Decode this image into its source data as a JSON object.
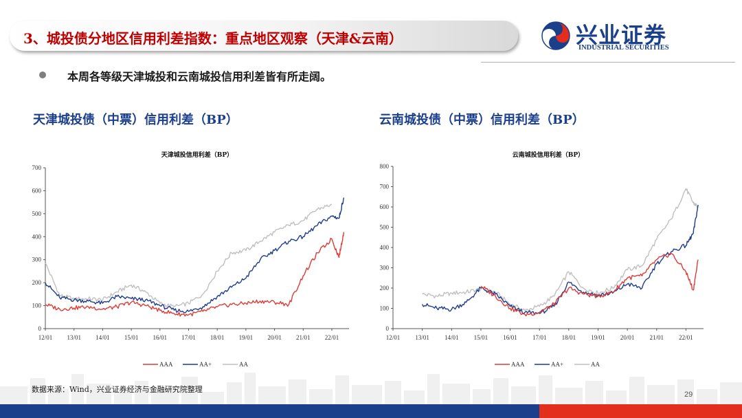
{
  "header": {
    "title": "3、城投债分地区信用利差指数：重点地区观察（天津&云南）",
    "logo_cn": "兴业证券",
    "logo_en": "INDUSTRIAL SECURITIES"
  },
  "bullet": "本周各等级天津城投和云南城投信用利差皆有所走阔。",
  "footer": {
    "source": "数据来源：Wind，兴业证券经济与金融研究院整理",
    "page": "29"
  },
  "colors": {
    "AAA": "#e03a35",
    "AA+": "#1f3c8c",
    "AA": "#c0c0c0",
    "brand_blue": "#1b3f8b",
    "brand_red": "#e32d1d"
  },
  "chart_data": [
    {
      "type": "line",
      "heading": "天津城投债（中票）信用利差（BP）",
      "title": "天津城投信用利差（BP）",
      "x_ticks": [
        "12/01",
        "13/01",
        "14/01",
        "15/01",
        "16/01",
        "17/01",
        "18/01",
        "19/01",
        "20/01",
        "21/01",
        "22/01"
      ],
      "ylim": [
        0,
        700
      ],
      "y_ticks": [
        0,
        100,
        200,
        300,
        400,
        500,
        600,
        700
      ],
      "legend_position": "bottom",
      "x": [
        "2012-01",
        "2012-07",
        "2013-01",
        "2013-07",
        "2014-01",
        "2014-07",
        "2015-01",
        "2015-07",
        "2016-01",
        "2016-07",
        "2017-01",
        "2017-07",
        "2018-01",
        "2018-07",
        "2019-01",
        "2019-07",
        "2020-01",
        "2020-07",
        "2021-01",
        "2021-07",
        "2022-01",
        "2022-04",
        "2022-06"
      ],
      "series": [
        {
          "name": "AAA",
          "values": [
            105,
            85,
            90,
            95,
            85,
            95,
            115,
            100,
            80,
            65,
            60,
            75,
            95,
            105,
            110,
            120,
            115,
            105,
            230,
            330,
            390,
            310,
            420
          ]
        },
        {
          "name": "AA+",
          "values": [
            200,
            135,
            125,
            120,
            110,
            140,
            130,
            125,
            100,
            80,
            75,
            95,
            140,
            180,
            220,
            300,
            340,
            380,
            400,
            450,
            490,
            480,
            570
          ]
        },
        {
          "name": "AA",
          "values": [
            285,
            145,
            130,
            130,
            125,
            160,
            190,
            160,
            110,
            95,
            110,
            150,
            250,
            330,
            340,
            380,
            420,
            450,
            470,
            520,
            540,
            null,
            null
          ]
        }
      ]
    },
    {
      "type": "line",
      "heading": "云南城投债（中票）信用利差（BP）",
      "title": "云南城投信用利差（BP）",
      "x_ticks": [
        "12/01",
        "13/01",
        "14/01",
        "15/01",
        "16/01",
        "17/01",
        "18/01",
        "19/01",
        "20/01",
        "21/01",
        "22/01"
      ],
      "ylim": [
        0,
        800
      ],
      "y_ticks": [
        0,
        100,
        200,
        300,
        400,
        500,
        600,
        700,
        800
      ],
      "legend_position": "bottom",
      "x": [
        "2013-01",
        "2013-07",
        "2014-01",
        "2014-07",
        "2015-01",
        "2015-07",
        "2016-01",
        "2016-07",
        "2017-01",
        "2017-07",
        "2018-01",
        "2018-07",
        "2019-01",
        "2019-07",
        "2020-01",
        "2020-07",
        "2021-01",
        "2021-07",
        "2022-01",
        "2022-04",
        "2022-06"
      ],
      "series": [
        {
          "name": "AAA",
          "values": [
            null,
            null,
            null,
            null,
            210,
            160,
            100,
            70,
            80,
            120,
            200,
            170,
            160,
            180,
            250,
            260,
            340,
            370,
            280,
            190,
            340
          ]
        },
        {
          "name": "AA+",
          "values": [
            120,
            100,
            95,
            130,
            200,
            170,
            110,
            80,
            75,
            110,
            230,
            180,
            165,
            175,
            220,
            200,
            320,
            380,
            410,
            470,
            610
          ]
        },
        {
          "name": "AA",
          "values": [
            170,
            160,
            175,
            180,
            195,
            180,
            120,
            90,
            110,
            160,
            280,
            200,
            175,
            200,
            290,
            310,
            440,
            540,
            690,
            620,
            600
          ]
        }
      ]
    }
  ]
}
